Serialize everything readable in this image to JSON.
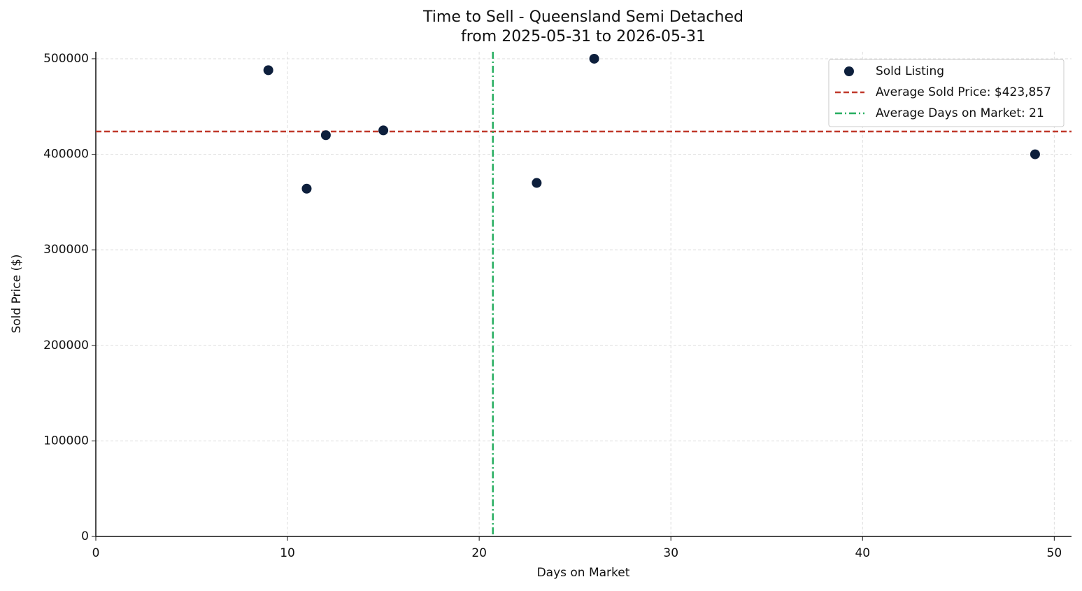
{
  "chart_data": {
    "type": "scatter",
    "title": "Time to Sell - Queensland Semi Detached",
    "subtitle": "from 2025-05-31 to 2026-05-31",
    "x_label": "Days on Market",
    "y_label": "Sold Price ($)",
    "x": [
      9,
      11,
      12,
      15,
      23,
      26,
      49
    ],
    "series": [
      {
        "name": "Sold Listing",
        "color": "#0d1f3c",
        "values": [
          488000,
          364000,
          420000,
          425000,
          370000,
          500000,
          400000
        ]
      }
    ],
    "reference_lines": [
      {
        "name": "Average Sold Price: $423,857",
        "axis": "y",
        "value": 423857,
        "color": "#c0392b",
        "dash": "8,4"
      },
      {
        "name": "Average Days on Market: 21",
        "axis": "x",
        "value": 20.714,
        "color": "#27ae60",
        "dash": "10,4,2,4"
      }
    ],
    "xlim": [
      0,
      50.9
    ],
    "xticks": [
      0,
      10,
      20,
      30,
      40,
      50
    ],
    "ylim": [
      0,
      507300
    ],
    "yticks": [
      0,
      100000,
      200000,
      300000,
      400000,
      500000
    ],
    "grid": true,
    "legend": "upper right"
  }
}
